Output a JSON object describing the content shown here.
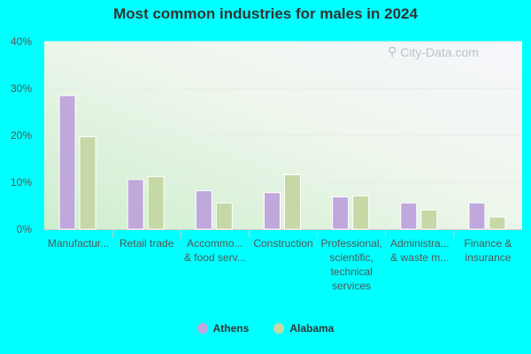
{
  "chart_data": {
    "type": "bar",
    "title": "Most common industries for males in 2024",
    "categories": [
      [
        "Manufactur..."
      ],
      [
        "Retail trade"
      ],
      [
        "Accommo...",
        "& food serv..."
      ],
      [
        "Construction"
      ],
      [
        "Professional,",
        "scientific,",
        "technical",
        "services"
      ],
      [
        "Administra...",
        "& waste m..."
      ],
      [
        "Finance &",
        "insurance"
      ]
    ],
    "series": [
      {
        "name": "Athens",
        "color": "#c0a8dc",
        "values": [
          28.5,
          10.6,
          8.2,
          7.8,
          6.9,
          5.6,
          5.6
        ]
      },
      {
        "name": "Alabama",
        "color": "#c5d8a6",
        "values": [
          19.7,
          11.2,
          5.6,
          11.6,
          7.1,
          4.1,
          2.6
        ]
      }
    ],
    "ylim": [
      0,
      40
    ],
    "yticks": [
      "0%",
      "10%",
      "20%",
      "30%",
      "40%"
    ],
    "grid": true,
    "legend_position": "bottom"
  },
  "watermark": "City-Data.com"
}
